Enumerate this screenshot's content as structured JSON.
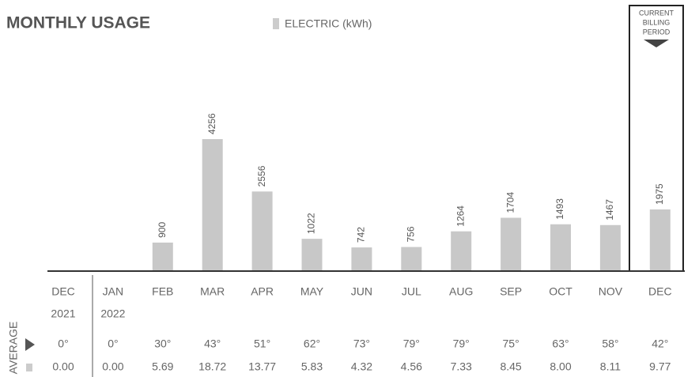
{
  "chart_data": {
    "type": "bar",
    "title": "MONTHLY USAGE",
    "legend_label": "ELECTRIC (kWh)",
    "current_period_label": [
      "CURRENT",
      "BILLING",
      "PERIOD"
    ],
    "average_label": "AVERAGE",
    "color": "#c8c8c8",
    "categories": [
      "DEC",
      "JAN",
      "FEB",
      "MAR",
      "APR",
      "MAY",
      "JUN",
      "JUL",
      "AUG",
      "SEP",
      "OCT",
      "NOV",
      "DEC"
    ],
    "years": [
      "2021",
      "2022",
      null,
      null,
      null,
      null,
      null,
      null,
      null,
      null,
      null,
      null,
      null
    ],
    "values": [
      null,
      null,
      900,
      4256,
      2556,
      1022,
      742,
      756,
      1264,
      1704,
      1493,
      1467,
      1975
    ],
    "avg_temperature": [
      "0°",
      "0°",
      "30°",
      "43°",
      "51°",
      "62°",
      "73°",
      "79°",
      "79°",
      "75°",
      "63°",
      "58°",
      "42°"
    ],
    "avg_daily_usage": [
      "0.00",
      "0.00",
      "5.69",
      "18.72",
      "13.77",
      "5.83",
      "4.32",
      "4.56",
      "7.33",
      "8.45",
      "8.00",
      "8.11",
      "9.77"
    ]
  }
}
